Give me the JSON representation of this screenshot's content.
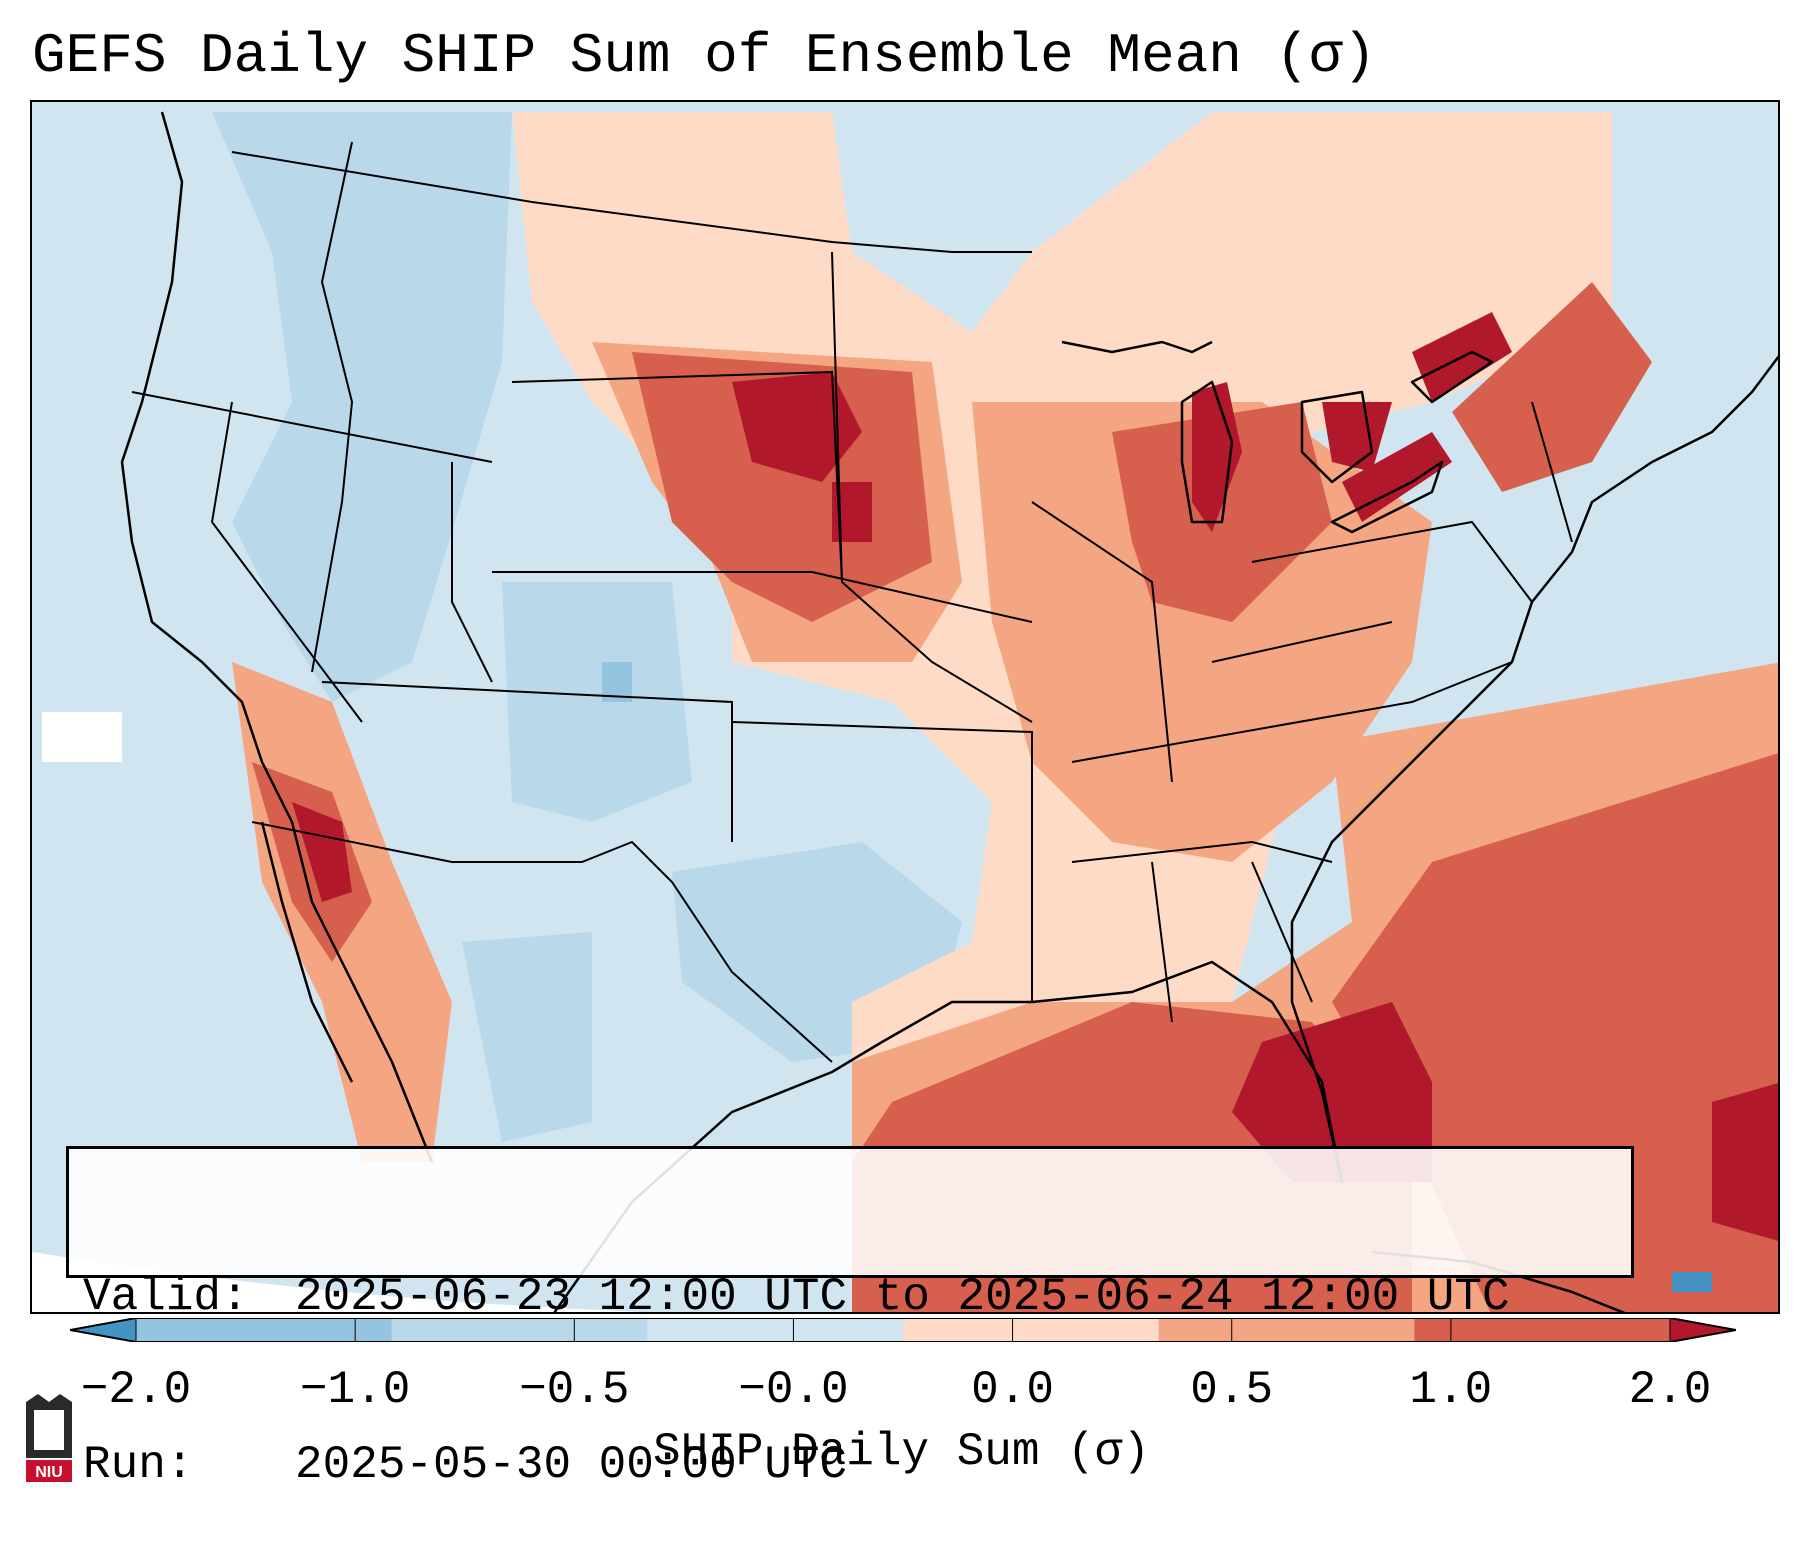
{
  "title": "GEFS Daily SHIP Sum of Ensemble Mean (σ)",
  "info": {
    "valid_label": "Valid:",
    "valid_value": "2025-06-23 12:00 UTC to 2025-06-24 12:00 UTC",
    "run_label": "Run:",
    "run_value": "2025-05-30 00:00 UTC"
  },
  "colorbar": {
    "label": "SHIP Daily Sum (σ)",
    "ticks": [
      "−2.0",
      "−1.0",
      "−0.5",
      "−0.0",
      "0.0",
      "0.5",
      "1.0",
      "2.0"
    ],
    "bins": [
      {
        "from": -2.0,
        "to": -1.0,
        "color": "#94c4df"
      },
      {
        "from": -1.0,
        "to": -0.5,
        "color": "#b9d8ea"
      },
      {
        "from": -0.5,
        "to": 0.0,
        "color": "#d1e5f0"
      },
      {
        "from": 0.0,
        "to": 0.5,
        "color": "#fddbc7"
      },
      {
        "from": 0.5,
        "to": 1.0,
        "color": "#f4a582"
      },
      {
        "from": 1.0,
        "to": 2.0,
        "color": "#d6604d"
      }
    ],
    "under_color": "#4393c3",
    "over_color": "#b2182b"
  },
  "map": {
    "background_color": "#d1e5f0",
    "regions": [
      {
        "name": "Northern Plains maximum",
        "color": "#b2182b"
      },
      {
        "name": "Great Lakes maximum",
        "color": "#b2182b"
      },
      {
        "name": "Gulf of Mexico maximum",
        "color": "#b2182b"
      },
      {
        "name": "Southwest desert maximum",
        "color": "#b2182b"
      },
      {
        "name": "Colorado / Texas minimum",
        "color": "#94c4df"
      }
    ]
  },
  "logo": {
    "text": "NIU",
    "color": "#c8102e"
  }
}
